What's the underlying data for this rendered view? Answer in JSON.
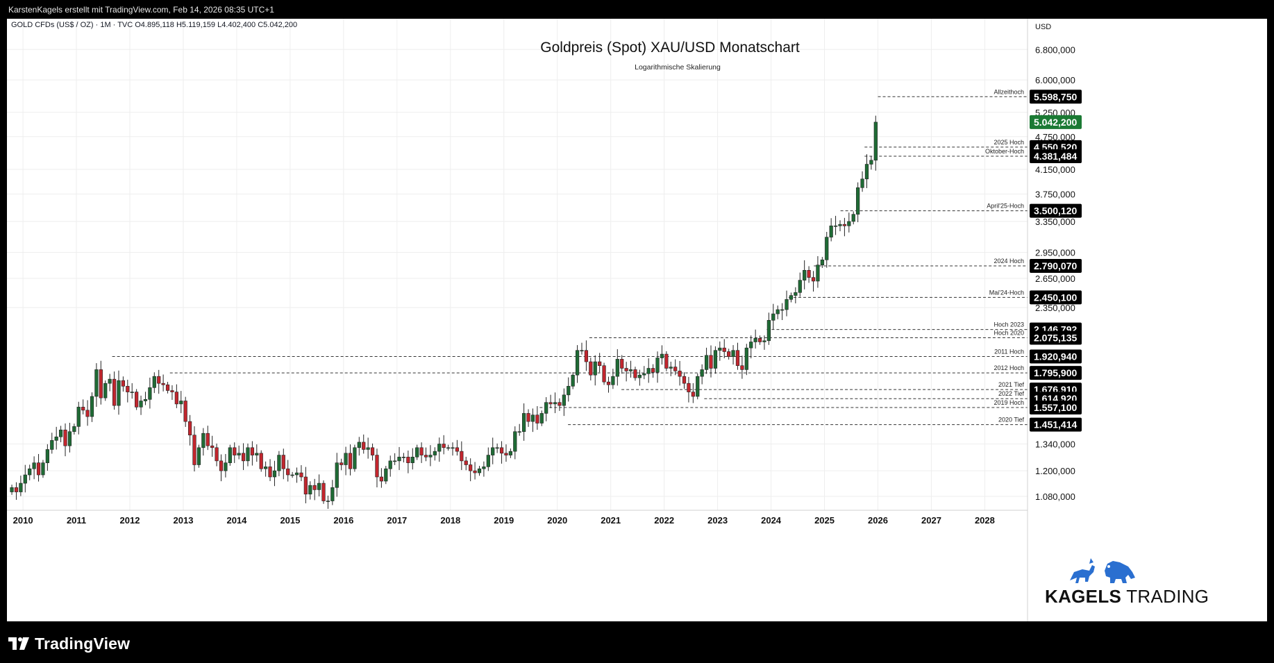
{
  "header": {
    "attribution": "KarstenKagels erstellt mit TradingView.com, Feb 14, 2026 08:35 UTC+1"
  },
  "footer": {
    "logo_text": "TradingView"
  },
  "brand": {
    "name_bold": "KAGELS",
    "name_light": "TRADING"
  },
  "colors": {
    "up": "#1f6b35",
    "down": "#c2262e",
    "grid": "#eeeeee",
    "label_bg": "#000000",
    "last_price_bg": "#1b7a34",
    "brand_blue": "#2a6fd0"
  },
  "chart_data": {
    "type": "candlestick",
    "symbol_line": "GOLD CFDs (US$ / OZ) · 1M · TVC  O4.895,118  H5.119,159  L4.402,400  C5.042,200",
    "title": "Goldpreis (Spot) XAU/USD Monatschart",
    "subtitle": "Logarithmische Skalierung",
    "currency": "USD",
    "scale": "log",
    "x_range": [
      2009.7,
      2028.8
    ],
    "y_range": [
      980,
      7400
    ],
    "x_ticks": [
      "2010",
      "2011",
      "2012",
      "2013",
      "2014",
      "2015",
      "2016",
      "2017",
      "2018",
      "2019",
      "2020",
      "2021",
      "2022",
      "2023",
      "2024",
      "2025",
      "2026",
      "2027",
      "2028"
    ],
    "y_ticks": [
      {
        "value": 1080,
        "label": "1.080,000"
      },
      {
        "value": 1200,
        "label": "1.200,000"
      },
      {
        "value": 1340,
        "label": "1.340,000"
      },
      {
        "value": 2350,
        "label": "2.350,000"
      },
      {
        "value": 2650,
        "label": "2.650,000"
      },
      {
        "value": 2950,
        "label": "2.950,000"
      },
      {
        "value": 3350,
        "label": "3.350,000"
      },
      {
        "value": 3750,
        "label": "3.750,000"
      },
      {
        "value": 4150,
        "label": "4.150,000"
      },
      {
        "value": 4750,
        "label": "4.750,000"
      },
      {
        "value": 5250,
        "label": "5.250,000"
      },
      {
        "value": 6000,
        "label": "6.000,000"
      },
      {
        "value": 6800,
        "label": "6.800,000"
      }
    ],
    "levels": [
      {
        "name": "Allzeithoch",
        "price": 5598.75,
        "label": "5.598,750",
        "start": 2026.0
      },
      {
        "name": "2025 Hoch",
        "price": 4550.52,
        "label": "4.550,520",
        "start": 2025.75
      },
      {
        "name": "Oktober-Hoch",
        "price": 4381.484,
        "label": "4.381,484",
        "start": 2025.75
      },
      {
        "name": "April'25-Hoch",
        "price": 3500.12,
        "label": "3.500,120",
        "start": 2025.3
      },
      {
        "name": "2024 Hoch",
        "price": 2790.07,
        "label": "2.790,070",
        "start": 2024.8
      },
      {
        "name": "Mai'24-Hoch",
        "price": 2450.1,
        "label": "2.450,100",
        "start": 2024.33
      },
      {
        "name": "Hoch 2023",
        "price": 2146.792,
        "label": "2.146,792",
        "start": 2023.92
      },
      {
        "name": "Hoch 2020",
        "price": 2075.135,
        "label": "2.075,135",
        "start": 2020.6
      },
      {
        "name": "2011 Hoch",
        "price": 1920.94,
        "label": "1.920,940",
        "start": 2011.67
      },
      {
        "name": "2012 Hoch",
        "price": 1795.9,
        "label": "1.795,900",
        "start": 2012.75
      },
      {
        "name": "2021 Tief",
        "price": 1676.91,
        "label": "1.676,910",
        "start": 2021.2
      },
      {
        "name": "2022 Tief",
        "price": 1614.92,
        "label": "1.614,920",
        "start": 2022.75
      },
      {
        "name": "2019 Hoch",
        "price": 1557.1,
        "label": "1.557,100",
        "start": 2019.67
      },
      {
        "name": "2020 Tief",
        "price": 1451.414,
        "label": "1.451,414",
        "start": 2020.2
      }
    ],
    "last_price": {
      "price": 5042.2,
      "label": "5.042,200"
    },
    "monthly_close": [
      1120,
      1100,
      1140,
      1180,
      1210,
      1240,
      1180,
      1240,
      1310,
      1360,
      1380,
      1420,
      1330,
      1410,
      1440,
      1560,
      1540,
      1500,
      1630,
      1820,
      1620,
      1720,
      1750,
      1570,
      1740,
      1700,
      1660,
      1660,
      1560,
      1600,
      1610,
      1690,
      1770,
      1720,
      1710,
      1670,
      1660,
      1580,
      1600,
      1470,
      1390,
      1230,
      1320,
      1400,
      1330,
      1320,
      1250,
      1200,
      1240,
      1320,
      1280,
      1290,
      1250,
      1320,
      1280,
      1290,
      1210,
      1220,
      1170,
      1200,
      1280,
      1210,
      1180,
      1180,
      1190,
      1170,
      1090,
      1130,
      1110,
      1140,
      1060,
      1060,
      1120,
      1240,
      1230,
      1290,
      1210,
      1320,
      1350,
      1310,
      1320,
      1280,
      1170,
      1150,
      1210,
      1250,
      1250,
      1270,
      1270,
      1240,
      1270,
      1320,
      1280,
      1270,
      1280,
      1300,
      1340,
      1320,
      1320,
      1320,
      1300,
      1250,
      1230,
      1200,
      1190,
      1210,
      1220,
      1280,
      1320,
      1320,
      1290,
      1280,
      1300,
      1410,
      1410,
      1520,
      1470,
      1510,
      1460,
      1520,
      1590,
      1580,
      1590,
      1570,
      1640,
      1700,
      1780,
      1970,
      1970,
      1880,
      1780,
      1880,
      1850,
      1730,
      1710,
      1770,
      1900,
      1830,
      1810,
      1820,
      1760,
      1780,
      1790,
      1830,
      1800,
      1910,
      1940,
      1830,
      1840,
      1810,
      1770,
      1720,
      1660,
      1630,
      1770,
      1820,
      1930,
      1830,
      1970,
      1990,
      1960,
      1920,
      1970,
      1850,
      1820,
      1990,
      2040,
      2070,
      2040,
      2050,
      2230,
      2290,
      2330,
      2330,
      2430,
      2470,
      2500,
      2630,
      2740,
      2660,
      2620,
      2800,
      2860,
      3140,
      3290,
      3290,
      3310,
      3290,
      3350,
      3450,
      3850,
      3990,
      4240,
      4310,
      5042
    ]
  }
}
